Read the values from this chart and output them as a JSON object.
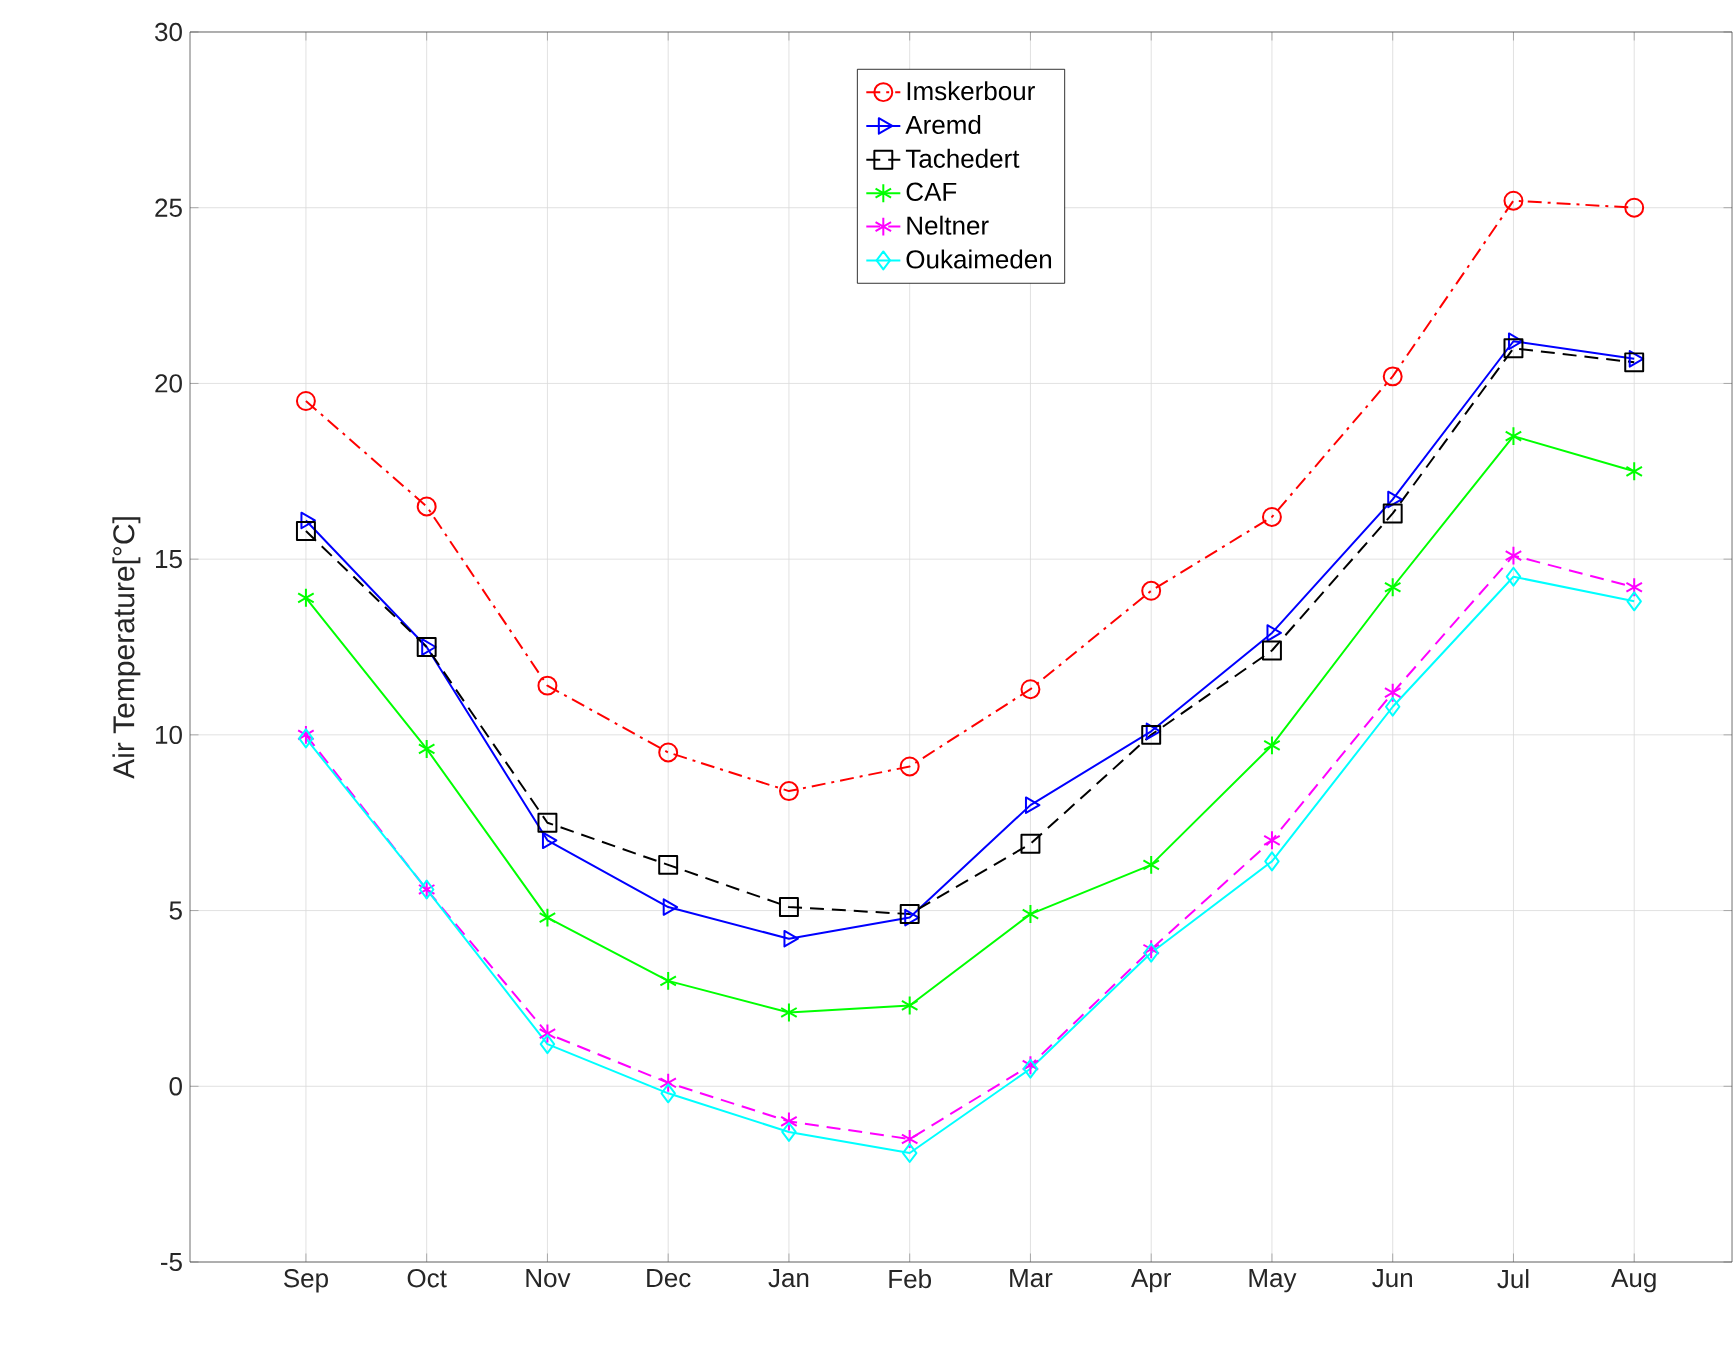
{
  "chart_data": {
    "type": "line",
    "ylabel": "Air Temperature[°C]",
    "categories": [
      "Sep",
      "Oct",
      "Nov",
      "Dec",
      "Jan",
      "Feb",
      "Mar",
      "Apr",
      "May",
      "Jun",
      "Jul",
      "Aug"
    ],
    "series": [
      {
        "name": "Imskerbour",
        "color": "#ff0000",
        "marker": "circle",
        "line_style": "dashdot",
        "values": [
          19.5,
          16.5,
          11.4,
          9.5,
          8.4,
          9.1,
          11.3,
          14.1,
          16.2,
          20.2,
          25.2,
          25.0
        ]
      },
      {
        "name": "Aremd",
        "color": "#0000ff",
        "marker": "triangle",
        "line_style": "solid",
        "values": [
          16.1,
          12.5,
          7.0,
          5.1,
          4.2,
          4.8,
          8.0,
          10.1,
          12.9,
          16.7,
          21.2,
          20.7
        ]
      },
      {
        "name": "Tachedert",
        "color": "#000000",
        "marker": "square",
        "line_style": "dashed",
        "values": [
          15.8,
          12.5,
          7.5,
          6.3,
          5.1,
          4.9,
          6.9,
          10.0,
          12.4,
          16.3,
          21.0,
          20.6
        ]
      },
      {
        "name": "CAF",
        "color": "#00ff00",
        "marker": "cross",
        "line_style": "solid",
        "values": [
          13.9,
          9.6,
          4.8,
          3.0,
          2.1,
          2.3,
          4.9,
          6.3,
          9.7,
          14.2,
          18.5,
          17.5
        ]
      },
      {
        "name": "Neltner",
        "color": "#ff00ff",
        "marker": "cross",
        "line_style": "dashed",
        "values": [
          10.0,
          5.6,
          1.5,
          0.1,
          -1.0,
          -1.5,
          0.6,
          3.9,
          7.0,
          11.2,
          15.1,
          14.2
        ]
      },
      {
        "name": "Oukaimeden",
        "color": "#00ffff",
        "marker": "diamond",
        "line_style": "solid",
        "values": [
          9.9,
          5.6,
          1.2,
          -0.2,
          -1.3,
          -1.9,
          0.5,
          3.8,
          6.4,
          10.8,
          14.5,
          13.8
        ]
      }
    ],
    "ylim": [
      -5,
      30
    ],
    "yticks": [
      -5,
      0,
      5,
      10,
      15,
      20,
      25,
      30
    ],
    "grid": true,
    "legend": "top"
  }
}
